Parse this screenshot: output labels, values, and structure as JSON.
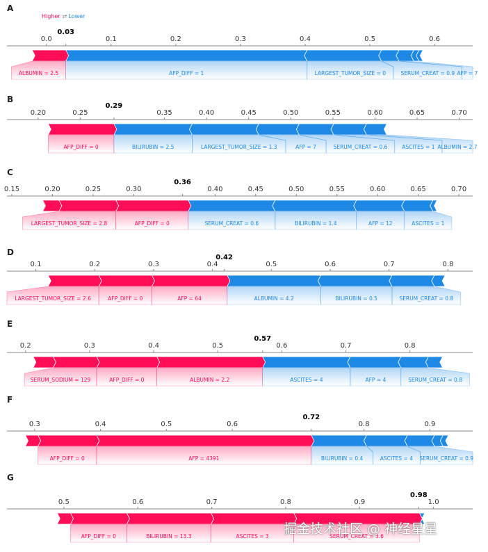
{
  "legend": {
    "higher": "Higher",
    "arrows": "⇄",
    "lower": "Lower"
  },
  "colors": {
    "higher": "#ff0d57",
    "lower": "#1e88e5",
    "axis": "#888888"
  },
  "watermark": "掘金技术社区 @ 神经星星",
  "chart_data": [
    {
      "type": "force",
      "panel": "A",
      "output_value": 0.03,
      "output_label": "0.03",
      "xlim": [
        -0.061,
        0.659
      ],
      "ticks": [
        "0.0",
        "0.1",
        "0.2",
        "0.3",
        "0.4",
        "0.5",
        "0.6"
      ],
      "tick_values": [
        0.0,
        0.1,
        0.2,
        0.3,
        0.4,
        0.5,
        0.6
      ],
      "higher": [
        {
          "label": "ALBUMIN = 2.5",
          "from": -0.022,
          "to": 0.03
        }
      ],
      "lower": [
        {
          "label": "AFP_DIFF = 1",
          "from": 0.03,
          "to": 0.403
        },
        {
          "label": "LARGEST_TUMOR_SIZE = 0",
          "from": 0.403,
          "to": 0.518
        },
        {
          "label": "SERUM_CREAT = 0.9",
          "from": 0.518,
          "to": 0.545
        },
        {
          "label": "AFP = 7",
          "from": 0.545,
          "to": 0.568
        },
        {
          "label": "",
          "from": 0.568,
          "to": 0.576
        },
        {
          "label": "",
          "from": 0.576,
          "to": 0.582
        }
      ]
    },
    {
      "type": "force",
      "panel": "B",
      "output_value": 0.29,
      "output_label": "0.29",
      "xlim": [
        0.163,
        0.716
      ],
      "ticks": [
        "0.20",
        "0.25",
        "0.35",
        "0.40",
        "0.45",
        "0.50",
        "0.55",
        "0.60",
        "0.65",
        "0.70"
      ],
      "tick_values": [
        0.2,
        0.25,
        0.35,
        0.4,
        0.45,
        0.5,
        0.55,
        0.6,
        0.65,
        0.7
      ],
      "higher": [
        {
          "label": "AFP_DIFF = 0",
          "from": 0.212,
          "to": 0.29
        }
      ],
      "lower": [
        {
          "label": "BILIRUBIN = 2.5",
          "from": 0.29,
          "to": 0.383
        },
        {
          "label": "LARGEST_TUMOR_SIZE = 1.3",
          "from": 0.383,
          "to": 0.462
        },
        {
          "label": "AFP = 7",
          "from": 0.462,
          "to": 0.51
        },
        {
          "label": "SERUM_CREAT = 0.6",
          "from": 0.51,
          "to": 0.551
        },
        {
          "label": "ASCITES = 1",
          "from": 0.551,
          "to": 0.59
        },
        {
          "label": "ALBUMIN = 2.7",
          "from": 0.59,
          "to": 0.614
        }
      ]
    },
    {
      "type": "force",
      "panel": "C",
      "output_value": 0.36,
      "output_label": "0.36",
      "xlim": [
        0.144,
        0.717
      ],
      "ticks": [
        "0.15",
        "0.20",
        "0.25",
        "0.30",
        "0.40",
        "0.45",
        "0.50",
        "0.55",
        "0.60",
        "0.65",
        "0.70"
      ],
      "tick_values": [
        0.15,
        0.2,
        0.25,
        0.3,
        0.4,
        0.45,
        0.5,
        0.55,
        0.6,
        0.65,
        0.7
      ],
      "higher": [
        {
          "label": "",
          "from": 0.188,
          "to": 0.208
        },
        {
          "label": "LARGEST_TUMOR_SIZE = 2.8",
          "from": 0.208,
          "to": 0.278
        },
        {
          "label": "AFP_DIFF = 0",
          "from": 0.278,
          "to": 0.367
        }
      ],
      "lower": [
        {
          "label": "SERUM_CREAT = 0.6",
          "from": 0.367,
          "to": 0.474
        },
        {
          "label": "BILIRUBIN = 1.4",
          "from": 0.474,
          "to": 0.574
        },
        {
          "label": "AFP = 12",
          "from": 0.574,
          "to": 0.633
        },
        {
          "label": "ASCITES = 1",
          "from": 0.633,
          "to": 0.668
        },
        {
          "label": "",
          "from": 0.668,
          "to": 0.673
        }
      ]
    },
    {
      "type": "force",
      "panel": "D",
      "output_value": 0.42,
      "output_label": "0.42",
      "xlim": [
        0.051,
        0.842
      ],
      "ticks": [
        "0.1",
        "0.2",
        "0.3",
        "0.4",
        "0.5",
        "0.6",
        "0.7",
        "0.8"
      ],
      "tick_values": [
        0.1,
        0.2,
        0.3,
        0.4,
        0.5,
        0.6,
        0.7,
        0.8
      ],
      "higher": [
        {
          "label": "LARGEST_TUMOR_SIZE = 2.6",
          "from": 0.121,
          "to": 0.207
        },
        {
          "label": "AFP_DIFF = 0",
          "from": 0.207,
          "to": 0.297
        },
        {
          "label": "AFP = 64",
          "from": 0.297,
          "to": 0.425
        }
      ],
      "lower": [
        {
          "label": "ALBUMIN = 4.2",
          "from": 0.425,
          "to": 0.584
        },
        {
          "label": "BILIRUBIN = 0.5",
          "from": 0.584,
          "to": 0.705
        },
        {
          "label": "SERUM_CREAT = 0.8",
          "from": 0.705,
          "to": 0.777
        },
        {
          "label": "",
          "from": 0.777,
          "to": 0.795
        }
      ]
    },
    {
      "type": "force",
      "panel": "E",
      "output_value": 0.57,
      "output_label": "0.57",
      "xlim": [
        0.171,
        0.898
      ],
      "ticks": [
        "0.2",
        "0.3",
        "0.4",
        "0.5",
        "0.6",
        "0.7",
        "0.8"
      ],
      "tick_values": [
        0.2,
        0.3,
        0.4,
        0.5,
        0.6,
        0.7,
        0.8
      ],
      "higher": [
        {
          "label": "",
          "from": 0.212,
          "to": 0.243
        },
        {
          "label": "SERUM_SODIUM = 129",
          "from": 0.243,
          "to": 0.311
        },
        {
          "label": "AFP_DIFF = 0",
          "from": 0.311,
          "to": 0.405
        },
        {
          "label": "ALBUMIN = 2.2",
          "from": 0.405,
          "to": 0.57
        }
      ],
      "lower": [
        {
          "label": "ASCITES = 4",
          "from": 0.57,
          "to": 0.707
        },
        {
          "label": "AFP = 4",
          "from": 0.707,
          "to": 0.786
        },
        {
          "label": "SERUM_CREAT = 0.8",
          "from": 0.786,
          "to": 0.829
        },
        {
          "label": "",
          "from": 0.829,
          "to": 0.851
        }
      ]
    },
    {
      "type": "force",
      "panel": "F",
      "output_value": 0.72,
      "output_label": "0.72",
      "xlim": [
        0.258,
        0.965
      ],
      "ticks": [
        "0.3",
        "0.4",
        "0.5",
        "0.6",
        "0.8",
        "0.9"
      ],
      "tick_values": [
        0.3,
        0.4,
        0.5,
        0.6,
        0.8,
        0.9
      ],
      "higher": [
        {
          "label": "",
          "from": 0.286,
          "to": 0.305
        },
        {
          "label": "AFP_DIFF = 0",
          "from": 0.305,
          "to": 0.394
        },
        {
          "label": "AFP = 4391",
          "from": 0.394,
          "to": 0.72
        }
      ],
      "lower": [
        {
          "label": "BILIRUBIN = 0.4",
          "from": 0.72,
          "to": 0.804
        },
        {
          "label": "ASCITES = 4",
          "from": 0.804,
          "to": 0.866
        },
        {
          "label": "SERUM_CREAT = 0.9",
          "from": 0.866,
          "to": 0.907
        },
        {
          "label": "",
          "from": 0.907,
          "to": 0.92
        },
        {
          "label": "",
          "from": 0.92,
          "to": 0.928
        }
      ]
    },
    {
      "type": "force",
      "panel": "G",
      "output_value": 0.98,
      "output_label": "0.98",
      "xlim": [
        0.423,
        1.053
      ],
      "ticks": [
        "0.5",
        "0.6",
        "0.7",
        "0.8",
        "0.9",
        "1.0"
      ],
      "tick_values": [
        0.5,
        0.6,
        0.7,
        0.8,
        0.9,
        1.0
      ],
      "higher": [
        {
          "label": "",
          "from": 0.491,
          "to": 0.509
        },
        {
          "label": "AFP_DIFF = 0",
          "from": 0.509,
          "to": 0.585
        },
        {
          "label": "BILIRUBIN = 13.3",
          "from": 0.585,
          "to": 0.699
        },
        {
          "label": "ASCITES = 3",
          "from": 0.699,
          "to": 0.811
        },
        {
          "label": "SERUM_CREAT = 3.6",
          "from": 0.811,
          "to": 0.981
        }
      ],
      "lower": [
        {
          "label": "",
          "from": 0.981,
          "to": 0.988
        }
      ]
    }
  ]
}
